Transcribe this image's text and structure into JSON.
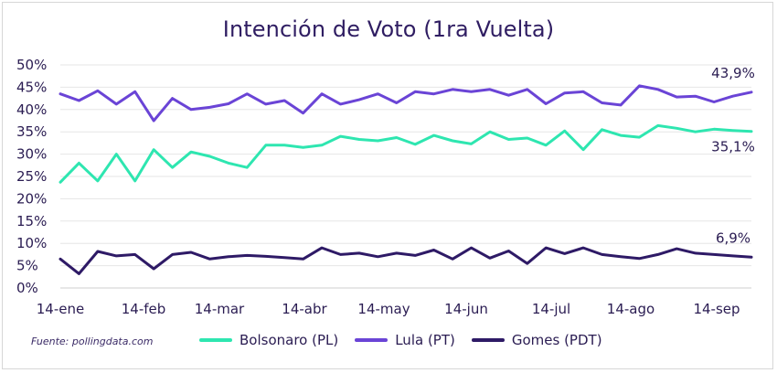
{
  "chart_data": {
    "type": "line",
    "title": "Intención de Voto (1ra Vuelta)",
    "source": "Fuente: pollingdata.com",
    "xlabel": "",
    "ylabel": "",
    "ylim": [
      0,
      50
    ],
    "yticks": [
      "0%",
      "5%",
      "10%",
      "15%",
      "20%",
      "25%",
      "30%",
      "35%",
      "40%",
      "45%",
      "50%"
    ],
    "xticks": [
      "14-ene",
      "14-feb",
      "14-mar",
      "14-abr",
      "14-may",
      "14-jun",
      "14-jul",
      "14-ago",
      "14-sep"
    ],
    "grid": true,
    "legend_position": "bottom",
    "series": [
      {
        "name": "Bolsonaro (PL)",
        "color": "#2ee6b0",
        "end_label": "35,1%",
        "values": [
          23.7,
          28.0,
          24.0,
          30.0,
          24.0,
          31.0,
          27.0,
          30.5,
          29.5,
          28.0,
          27.0,
          32.0,
          32.0,
          31.5,
          32.0,
          34.0,
          33.3,
          33.0,
          33.7,
          32.2,
          34.2,
          33.0,
          32.3,
          35.0,
          33.3,
          33.6,
          32.0,
          35.2,
          31.0,
          35.5,
          34.2,
          33.8,
          36.4,
          35.8,
          35.0,
          35.6,
          35.3,
          35.1
        ]
      },
      {
        "name": "Lula (PT)",
        "color": "#6a44d6",
        "end_label": "43,9%",
        "values": [
          43.5,
          42.0,
          44.2,
          41.2,
          44.0,
          37.5,
          42.5,
          40.0,
          40.5,
          41.3,
          43.5,
          41.2,
          42.0,
          39.2,
          43.5,
          41.2,
          42.2,
          43.5,
          41.5,
          44.0,
          43.5,
          44.5,
          44.0,
          44.5,
          43.2,
          44.5,
          41.3,
          43.7,
          44.0,
          41.5,
          41.0,
          45.3,
          44.5,
          42.8,
          43.0,
          41.7,
          43.0,
          43.9
        ]
      },
      {
        "name": "Gomes (PDT)",
        "color": "#2e1a66",
        "end_label": "6,9%",
        "values": [
          6.5,
          3.2,
          8.2,
          7.2,
          7.5,
          4.3,
          7.5,
          8.0,
          6.5,
          7.0,
          7.3,
          7.1,
          6.8,
          6.5,
          9.0,
          7.5,
          7.8,
          7.0,
          7.8,
          7.3,
          8.5,
          6.5,
          9.0,
          6.7,
          8.3,
          5.5,
          9.0,
          7.7,
          9.0,
          7.5,
          7.0,
          6.6,
          7.5,
          8.8,
          7.8,
          7.5,
          7.2,
          6.9
        ]
      }
    ]
  }
}
